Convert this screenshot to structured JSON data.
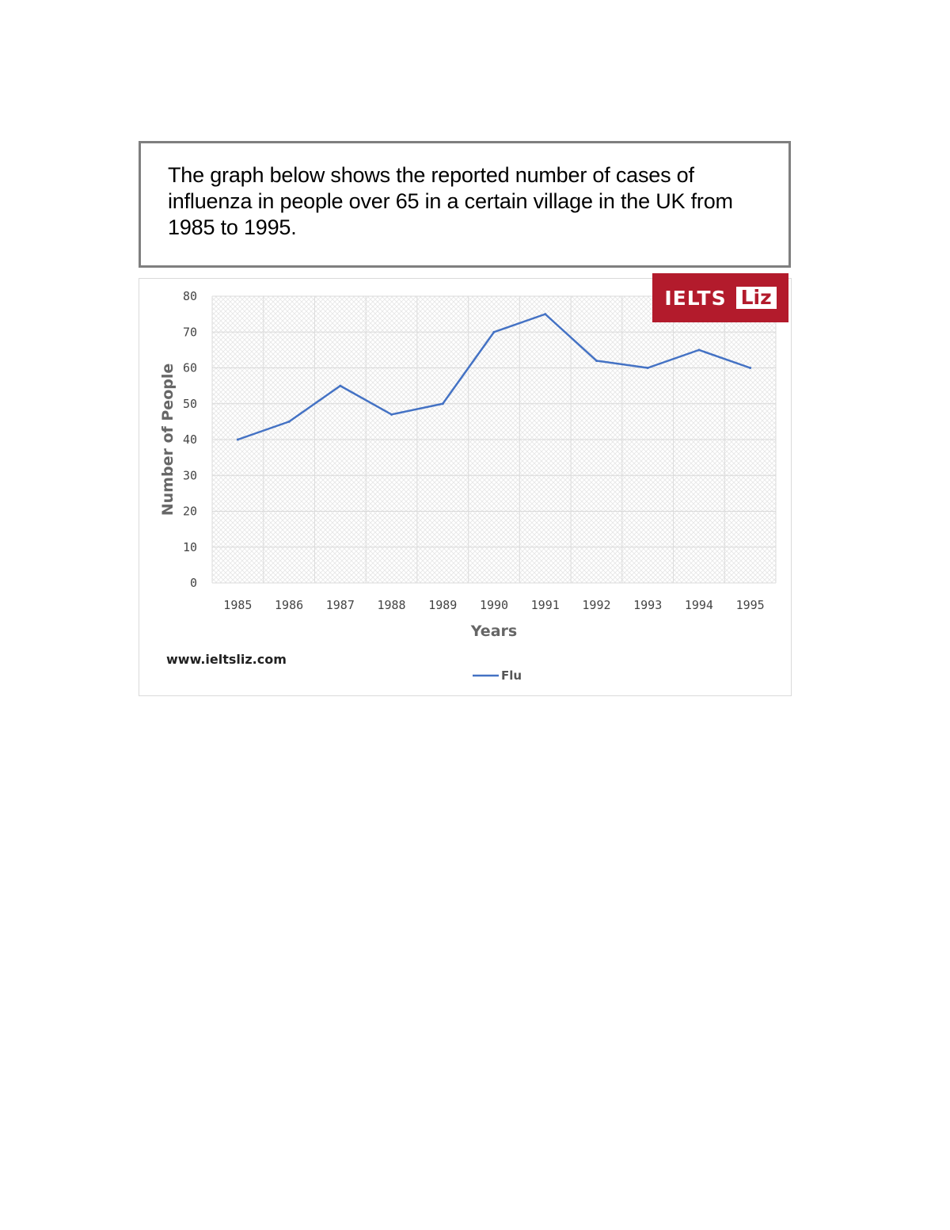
{
  "prompt": {
    "text": "The graph below shows the reported number of cases of influenza in people over 65 in a certain village in the UK from 1985 to 1995."
  },
  "brand": {
    "logo_word": "IELTS",
    "logo_name": "Liz",
    "website": "www.ieltsliz.com",
    "logo_color": "#b31b2c"
  },
  "chart_data": {
    "type": "line",
    "title": "",
    "xlabel": "Years",
    "ylabel": "Number of People",
    "categories": [
      "1985",
      "1986",
      "1987",
      "1988",
      "1989",
      "1990",
      "1991",
      "1992",
      "1993",
      "1994",
      "1995"
    ],
    "series": [
      {
        "name": "Flu",
        "color": "#4472c4",
        "values": [
          40,
          45,
          55,
          47,
          50,
          70,
          75,
          62,
          60,
          65,
          60
        ]
      }
    ],
    "ylim": [
      0,
      80
    ],
    "yticks": [
      0,
      10,
      20,
      30,
      40,
      50,
      60,
      70,
      80
    ],
    "grid": true,
    "legend": "bottom-center"
  }
}
